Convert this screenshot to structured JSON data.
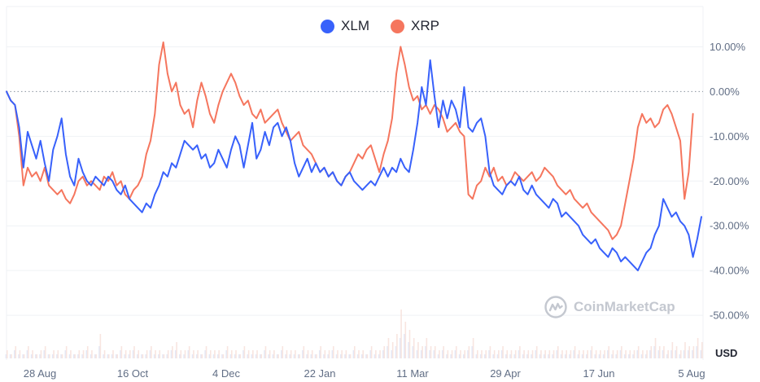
{
  "legend": {
    "xlm_label": "XLM",
    "xrp_label": "XRP"
  },
  "watermark": {
    "text": "CoinMarketCap"
  },
  "chart_data": {
    "type": "line",
    "y_unit": "%",
    "currency_label": "USD",
    "ylim": [
      -60,
      19
    ],
    "y_ticks": [
      {
        "value": 10,
        "label": "10.00%"
      },
      {
        "value": 0,
        "label": "0.00%"
      },
      {
        "value": -10,
        "label": "-10.00%"
      },
      {
        "value": -20,
        "label": "-20.00%"
      },
      {
        "value": -30,
        "label": "-30.00%"
      },
      {
        "value": -40,
        "label": "-40.00%"
      },
      {
        "value": -50,
        "label": "-50.00%"
      }
    ],
    "x_ticks": [
      "28 Aug",
      "16 Oct",
      "4 Dec",
      "22 Jan",
      "11 Mar",
      "29 Apr",
      "17 Jun",
      "5 Aug"
    ],
    "baseline": 0,
    "grid": true,
    "legend_position": "top-center",
    "series": [
      {
        "name": "XLM",
        "color": "#3861fb",
        "values": [
          0,
          -2,
          -3,
          -8,
          -17,
          -9,
          -12,
          -15,
          -11,
          -16,
          -20,
          -13,
          -10,
          -6,
          -14,
          -19,
          -21,
          -15,
          -18,
          -20,
          -21,
          -19,
          -20,
          -21,
          -19,
          -20,
          -22,
          -23,
          -21,
          -24,
          -25,
          -26,
          -27,
          -25,
          -26,
          -23,
          -21,
          -18,
          -19,
          -16,
          -17,
          -14,
          -11,
          -12,
          -13,
          -12,
          -15,
          -14,
          -17,
          -16,
          -13,
          -15,
          -17,
          -13,
          -10,
          -12,
          -17,
          -12,
          -7,
          -15,
          -13,
          -9,
          -12,
          -8,
          -7,
          -10,
          -8,
          -11,
          -16,
          -19,
          -17,
          -15,
          -18,
          -16,
          -18,
          -17,
          -19,
          -18,
          -20,
          -21,
          -19,
          -18,
          -20,
          -21,
          -22,
          -21,
          -20,
          -21,
          -19,
          -17,
          -19,
          -17,
          -18,
          -15,
          -17,
          -18,
          -13,
          -7,
          1,
          -3,
          7,
          -1,
          -8,
          -2,
          -6,
          -2,
          -4,
          -8,
          1,
          -8,
          -9,
          -7,
          -6,
          -10,
          -18,
          -21,
          -22,
          -23,
          -21,
          -20,
          -21,
          -19,
          -22,
          -23,
          -21,
          -23,
          -24,
          -25,
          -26,
          -24,
          -25,
          -28,
          -27,
          -28,
          -29,
          -30,
          -32,
          -33,
          -34,
          -33,
          -35,
          -36,
          -37,
          -35,
          -36,
          -38,
          -37,
          -38,
          -39,
          -40,
          -38,
          -36,
          -35,
          -32,
          -30,
          -24,
          -26,
          -28,
          -27,
          -29,
          -30,
          -32,
          -37,
          -33,
          -28
        ]
      },
      {
        "name": "XRP",
        "color": "#f5765e",
        "values": [
          0,
          -2,
          -3,
          -10,
          -21,
          -17,
          -19,
          -18,
          -20,
          -17,
          -21,
          -22,
          -23,
          -22,
          -24,
          -25,
          -23,
          -20,
          -19,
          -21,
          -20,
          -21,
          -22,
          -19,
          -20,
          -18,
          -21,
          -20,
          -23,
          -24,
          -22,
          -21,
          -19,
          -14,
          -11,
          -5,
          6,
          11,
          4,
          0,
          2,
          -3,
          -5,
          -4,
          -8,
          -2,
          2,
          -1,
          -5,
          -7,
          -3,
          0,
          2,
          4,
          2,
          -1,
          -3,
          -2,
          -5,
          -6,
          -4,
          -7,
          -6,
          -5,
          -4,
          -7,
          -9,
          -11,
          -10,
          -9,
          -12,
          -13,
          -14,
          -16,
          -18,
          -17,
          -19,
          -18,
          -20,
          -21,
          -19,
          -18,
          -16,
          -14,
          -15,
          -13,
          -12,
          -15,
          -18,
          -14,
          -11,
          -6,
          4,
          10,
          6,
          1,
          -2,
          -1,
          -4,
          -3,
          -5,
          -3,
          -4,
          -6,
          -9,
          -8,
          -7,
          -9,
          -10,
          -23,
          -24,
          -21,
          -20,
          -17,
          -19,
          -17,
          -20,
          -19,
          -21,
          -20,
          -18,
          -19,
          -20,
          -19,
          -18,
          -20,
          -19,
          -17,
          -18,
          -19,
          -21,
          -22,
          -23,
          -22,
          -24,
          -25,
          -26,
          -25,
          -27,
          -28,
          -29,
          -30,
          -31,
          -33,
          -32,
          -30,
          -25,
          -20,
          -15,
          -8,
          -5,
          -7,
          -6,
          -8,
          -7,
          -4,
          -3,
          -5,
          -8,
          -11,
          -24,
          -18,
          -5
        ]
      }
    ],
    "volume_bars": [
      {
        "series": "XLM",
        "values": [
          1,
          1,
          2,
          1,
          1,
          2,
          1,
          1,
          1,
          2,
          1,
          1,
          1,
          1,
          2,
          1,
          1,
          1,
          1,
          2,
          1,
          1,
          3,
          1,
          1,
          1,
          1,
          2,
          1,
          1,
          2,
          1,
          1,
          1,
          2,
          1,
          1,
          1,
          1,
          2,
          2,
          1,
          1,
          2,
          1,
          1,
          1,
          2,
          1,
          1,
          1,
          1,
          2,
          1,
          1,
          1,
          2,
          1,
          1,
          1,
          1,
          2,
          1,
          1,
          1,
          2,
          1,
          1,
          1,
          1,
          2,
          1,
          1,
          1,
          2,
          1,
          1,
          2,
          1,
          1,
          1,
          1,
          2,
          1,
          1,
          1,
          2,
          1,
          1,
          2,
          3,
          2,
          3,
          5,
          6,
          4,
          3,
          2,
          2,
          3,
          2,
          2,
          1,
          2,
          1,
          1,
          2,
          1,
          1,
          2,
          3,
          1,
          1,
          1,
          2,
          1,
          1,
          2,
          1,
          1,
          1,
          2,
          1,
          1,
          1,
          2,
          1,
          1,
          1,
          1,
          2,
          1,
          1,
          1,
          2,
          1,
          1,
          1,
          2,
          1,
          1,
          1,
          2,
          1,
          1,
          2,
          1,
          1,
          1,
          2,
          1,
          1,
          2,
          3,
          2,
          2,
          1,
          2,
          2,
          1,
          2,
          2,
          2,
          3,
          2
        ]
      },
      {
        "series": "XRP",
        "values": [
          2,
          1,
          3,
          2,
          1,
          3,
          2,
          1,
          2,
          3,
          1,
          2,
          2,
          1,
          3,
          2,
          1,
          2,
          2,
          3,
          2,
          1,
          6,
          2,
          1,
          2,
          1,
          3,
          2,
          2,
          3,
          2,
          1,
          2,
          3,
          2,
          2,
          1,
          2,
          3,
          4,
          2,
          2,
          3,
          2,
          2,
          1,
          3,
          2,
          2,
          2,
          1,
          3,
          2,
          2,
          1,
          3,
          2,
          2,
          2,
          1,
          3,
          2,
          2,
          1,
          3,
          2,
          2,
          2,
          1,
          3,
          2,
          2,
          1,
          3,
          2,
          2,
          3,
          2,
          2,
          2,
          1,
          3,
          2,
          2,
          1,
          3,
          2,
          2,
          3,
          5,
          4,
          6,
          12,
          9,
          7,
          5,
          4,
          3,
          5,
          3,
          3,
          2,
          3,
          2,
          2,
          3,
          2,
          2,
          3,
          5,
          2,
          2,
          2,
          3,
          2,
          2,
          3,
          2,
          2,
          2,
          3,
          2,
          2,
          2,
          3,
          2,
          2,
          2,
          2,
          3,
          2,
          2,
          2,
          3,
          2,
          2,
          2,
          3,
          2,
          2,
          2,
          3,
          2,
          2,
          3,
          2,
          2,
          2,
          3,
          2,
          2,
          3,
          5,
          3,
          3,
          2,
          4,
          3,
          2,
          4,
          3,
          3,
          5,
          4
        ]
      }
    ]
  }
}
